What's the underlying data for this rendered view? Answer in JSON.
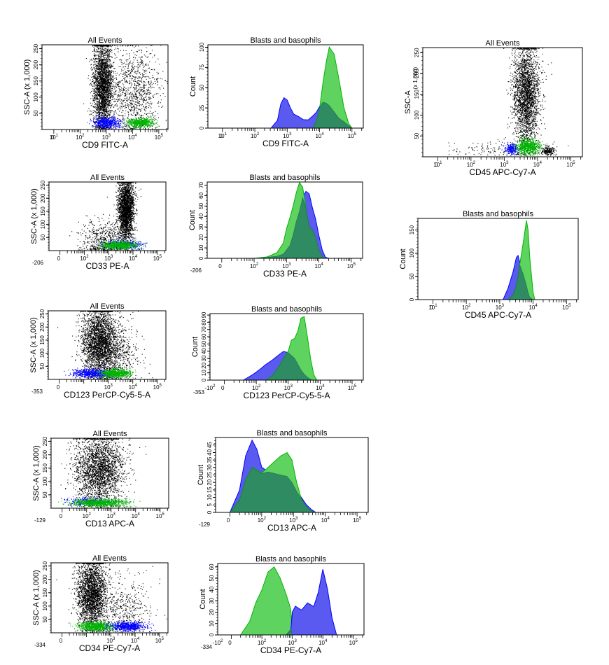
{
  "figure": {
    "colors": {
      "background": "#ffffff",
      "all_events": "#000000",
      "blasts": "#0000ff",
      "blasts_fill": "#5a5af0",
      "basophils": "#00b400",
      "basophils_fill": "#5fd35f",
      "overlap_fill": "#2e8b62"
    },
    "populations": [
      "Blasts (blue)",
      "Basophils (green)"
    ]
  },
  "chart_data": [
    {
      "id": "cd9-dot",
      "type": "scatter",
      "title": "All Events",
      "xlabel": "CD9 FITC-A",
      "ylabel": "SSC-A (x 1,000)",
      "x_scale": "biexponential",
      "x_ticks": [
        "0",
        "10^1",
        "10^2",
        "10^3",
        "10^4",
        "10^5"
      ],
      "y_ticks": [
        "50",
        "100",
        "150",
        "200",
        "250"
      ],
      "ylim": [
        0,
        262
      ],
      "clusters": [
        {
          "pop": "all",
          "x_log_center": 2.85,
          "x_log_sd": 0.18,
          "y_center": 140,
          "y_sd": 70,
          "n": 2600
        },
        {
          "pop": "all_sparse",
          "x_log_center": 4.0,
          "x_log_sd": 0.55,
          "y_center": 120,
          "y_sd": 65,
          "n": 1100
        },
        {
          "pop": "blasts",
          "x_log_center": 3.0,
          "x_log_sd": 0.25,
          "y_center": 22,
          "y_sd": 8,
          "n": 600
        },
        {
          "pop": "basophils",
          "x_log_center": 4.3,
          "x_log_sd": 0.25,
          "y_center": 22,
          "y_sd": 7,
          "n": 600
        }
      ]
    },
    {
      "id": "cd9-hist",
      "type": "area",
      "title": "Blasts and basophils",
      "xlabel": "CD9 FITC-A",
      "ylabel": "Count",
      "x_ticks": [
        "0",
        "10^1",
        "10^2",
        "10^3",
        "10^4",
        "10^5"
      ],
      "y_ticks": [
        "0",
        "25",
        "50",
        "75",
        "100"
      ],
      "ylim": [
        0,
        103
      ],
      "x_log": [
        2.5,
        2.7,
        2.8,
        2.9,
        3.0,
        3.1,
        3.2,
        3.35,
        3.5,
        3.65,
        3.8,
        3.9,
        4.0,
        4.1,
        4.2,
        4.3,
        4.45,
        4.6,
        4.75,
        4.9,
        5.0
      ],
      "series": [
        {
          "name": "Blasts",
          "values": [
            0,
            10,
            30,
            38,
            34,
            25,
            17,
            14,
            11,
            10,
            16,
            20,
            27,
            32,
            31,
            28,
            20,
            12,
            8,
            3,
            0
          ]
        },
        {
          "name": "Basophils",
          "values": [
            0,
            0,
            0,
            0,
            0,
            0,
            0,
            0,
            0,
            0,
            0,
            8,
            25,
            55,
            80,
            100,
            92,
            60,
            25,
            6,
            0
          ]
        }
      ]
    },
    {
      "id": "cd45-dot",
      "type": "scatter",
      "title": "All Events",
      "xlabel": "CD45 APC-Cy7-A",
      "ylabel": "SSC-A",
      "ylabel2": "(x 1,000)",
      "x_ticks": [
        "0",
        "10^1",
        "10^2",
        "10^3",
        "10^4",
        "10^5"
      ],
      "y_ticks": [
        "50",
        "100",
        "150",
        "200",
        "250"
      ],
      "ylim": [
        0,
        262
      ],
      "clusters": [
        {
          "pop": "all",
          "x_log_center": 3.65,
          "x_log_sd": 0.2,
          "y_center": 150,
          "y_sd": 60,
          "n": 3200
        },
        {
          "pop": "all_sparse",
          "x_log_center": 2.8,
          "x_log_sd": 0.7,
          "y_center": 20,
          "y_sd": 10,
          "n": 150
        },
        {
          "pop": "lymph",
          "x_log_center": 4.3,
          "x_log_sd": 0.1,
          "y_center": 15,
          "y_sd": 5,
          "n": 200
        },
        {
          "pop": "blasts",
          "x_log_center": 3.2,
          "x_log_sd": 0.1,
          "y_center": 20,
          "y_sd": 6,
          "n": 250
        },
        {
          "pop": "basophils",
          "x_log_center": 3.7,
          "x_log_sd": 0.18,
          "y_center": 25,
          "y_sd": 9,
          "n": 700
        }
      ]
    },
    {
      "id": "cd45-hist",
      "type": "area",
      "title": "Blasts and basophils",
      "xlabel": "CD45 APC-Cy7-A",
      "ylabel": "Count",
      "x_ticks": [
        "0",
        "10^1",
        "10^2",
        "10^3",
        "10^4",
        "10^5"
      ],
      "y_ticks": [
        "0",
        "50",
        "100",
        "150"
      ],
      "ylim": [
        0,
        175
      ],
      "x_log": [
        3.1,
        3.25,
        3.4,
        3.5,
        3.55,
        3.6,
        3.7,
        3.8,
        3.85,
        3.9,
        4.0,
        4.05
      ],
      "series": [
        {
          "name": "Blasts",
          "values": [
            0,
            25,
            60,
            90,
            95,
            80,
            55,
            30,
            15,
            5,
            0,
            0
          ]
        },
        {
          "name": "Basophils",
          "values": [
            0,
            0,
            10,
            30,
            50,
            75,
            120,
            170,
            150,
            90,
            15,
            0
          ]
        }
      ]
    },
    {
      "id": "cd33-dot",
      "type": "scatter",
      "title": "All Events",
      "xlabel": "CD33 PE-A",
      "ylabel": "SSC-A (x 1,000)",
      "x_ticks": [
        "-206",
        "0",
        "10^2",
        "10^3",
        "10^4",
        "10^5"
      ],
      "y_ticks": [
        "50",
        "100",
        "150",
        "200",
        "250"
      ],
      "ylim": [
        0,
        262
      ],
      "clusters": [
        {
          "pop": "all",
          "x_log_center": 3.7,
          "x_log_sd": 0.16,
          "y_center": 160,
          "y_sd": 60,
          "n": 2800
        },
        {
          "pop": "all_sparse",
          "x_log_center": 2.8,
          "x_log_sd": 0.5,
          "y_center": 40,
          "y_sd": 40,
          "n": 600
        },
        {
          "pop": "blasts",
          "x_log_center": 3.6,
          "x_log_sd": 0.4,
          "y_center": 25,
          "y_sd": 8,
          "n": 400
        },
        {
          "pop": "basophils",
          "x_log_center": 3.4,
          "x_log_sd": 0.35,
          "y_center": 22,
          "y_sd": 7,
          "n": 700
        }
      ]
    },
    {
      "id": "cd33-hist",
      "type": "area",
      "title": "Blasts and basophils",
      "xlabel": "CD33 PE-A",
      "ylabel": "Count",
      "x_ticks": [
        "-206",
        "0",
        "10^2",
        "10^3",
        "10^4",
        "10^5"
      ],
      "y_ticks": [
        "0",
        "10",
        "20",
        "30",
        "40",
        "50",
        "60",
        "70"
      ],
      "ylim": [
        0,
        73
      ],
      "x_log": [
        2.0,
        2.4,
        2.7,
        2.9,
        3.0,
        3.1,
        3.2,
        3.3,
        3.4,
        3.5,
        3.6,
        3.7,
        3.8,
        3.9,
        4.0,
        4.1,
        4.2,
        4.3
      ],
      "series": [
        {
          "name": "Blasts",
          "values": [
            0,
            1,
            2,
            4,
            8,
            12,
            22,
            35,
            45,
            58,
            64,
            62,
            48,
            38,
            22,
            8,
            1,
            0
          ]
        },
        {
          "name": "Basophils",
          "values": [
            0,
            1,
            5,
            15,
            28,
            38,
            50,
            63,
            72,
            68,
            48,
            30,
            27,
            20,
            8,
            2,
            0,
            0
          ]
        }
      ]
    },
    {
      "id": "cd123-dot",
      "type": "scatter",
      "title": "All Events",
      "xlabel": "CD123 PerCP-Cy5-5-A",
      "ylabel": "SSC-A (x 1,000)",
      "x_ticks": [
        "-353",
        "0",
        "10^3",
        "10^4",
        "10^5"
      ],
      "y_ticks": [
        "50",
        "100",
        "150",
        "200",
        "250"
      ],
      "ylim": [
        0,
        262
      ],
      "clusters": [
        {
          "pop": "all",
          "x_log_center": 2.6,
          "x_log_sd": 0.35,
          "y_center": 150,
          "y_sd": 65,
          "n": 3400
        },
        {
          "pop": "all_sparse",
          "x_log_center": 3.2,
          "x_log_sd": 0.5,
          "y_center": 100,
          "y_sd": 60,
          "n": 800
        },
        {
          "pop": "blasts",
          "x_log_center": 2.3,
          "x_log_sd": 0.4,
          "y_center": 25,
          "y_sd": 8,
          "n": 600
        },
        {
          "pop": "basophils",
          "x_log_center": 3.3,
          "x_log_sd": 0.3,
          "y_center": 25,
          "y_sd": 8,
          "n": 700
        }
      ]
    },
    {
      "id": "cd123-hist",
      "type": "area",
      "title": "Blasts and basophils",
      "xlabel": "CD123 PerCP-Cy5-5-A",
      "ylabel": "Count",
      "x_ticks": [
        "-353",
        "-10^2",
        "0",
        "10^2",
        "10^3",
        "10^4",
        "10^5"
      ],
      "y_ticks": [
        "0",
        "10",
        "20",
        "30",
        "40",
        "50",
        "60",
        "70",
        "80",
        "90"
      ],
      "ylim": [
        0,
        92
      ],
      "x_log": [
        1.6,
        1.9,
        2.1,
        2.3,
        2.5,
        2.7,
        2.85,
        3.0,
        3.1,
        3.2,
        3.3,
        3.4,
        3.5,
        3.6,
        3.7,
        3.8,
        3.9
      ],
      "series": [
        {
          "name": "Blasts",
          "values": [
            0,
            8,
            15,
            22,
            28,
            35,
            40,
            38,
            34,
            30,
            22,
            14,
            8,
            4,
            1,
            0,
            0
          ]
        },
        {
          "name": "Basophils",
          "values": [
            0,
            0,
            0,
            0,
            6,
            18,
            30,
            40,
            55,
            58,
            68,
            85,
            88,
            60,
            30,
            8,
            0
          ]
        }
      ]
    },
    {
      "id": "cd13-dot",
      "type": "scatter",
      "title": "All Events",
      "xlabel": "CD13 APC-A",
      "ylabel": "SSC-A (x 1,000)",
      "x_ticks": [
        "-129",
        "0",
        "10^2",
        "10^3",
        "10^4",
        "10^5"
      ],
      "y_ticks": [
        "50",
        "100",
        "150",
        "200",
        "250"
      ],
      "ylim": [
        0,
        262
      ],
      "clusters": [
        {
          "pop": "all",
          "x_log_center": 2.5,
          "x_log_sd": 0.5,
          "y_center": 150,
          "y_sd": 65,
          "n": 3600
        },
        {
          "pop": "blasts",
          "x_log_center": 2.1,
          "x_log_sd": 0.45,
          "y_center": 25,
          "y_sd": 8,
          "n": 300
        },
        {
          "pop": "basophils",
          "x_log_center": 2.5,
          "x_log_sd": 0.55,
          "y_center": 22,
          "y_sd": 7,
          "n": 900
        }
      ]
    },
    {
      "id": "cd13-hist",
      "type": "area",
      "title": "Blasts and basophils",
      "xlabel": "CD13 APC-A",
      "ylabel": "Count",
      "x_ticks": [
        "-129",
        "0",
        "10^2",
        "10^3",
        "10^4",
        "10^5"
      ],
      "y_ticks": [
        "0",
        "5",
        "10",
        "15",
        "20",
        "25",
        "30",
        "35",
        "40",
        "45"
      ],
      "ylim": [
        0,
        50
      ],
      "x_log": [
        1.0,
        1.3,
        1.5,
        1.7,
        1.85,
        2.0,
        2.2,
        2.4,
        2.6,
        2.8,
        2.95,
        3.1,
        3.25,
        3.4,
        3.55,
        3.7
      ],
      "series": [
        {
          "name": "Blasts",
          "values": [
            0,
            15,
            38,
            48,
            42,
            30,
            27,
            26,
            25,
            24,
            20,
            14,
            10,
            5,
            2,
            0
          ]
        },
        {
          "name": "Basophils",
          "values": [
            0,
            8,
            22,
            30,
            28,
            26,
            30,
            34,
            38,
            40,
            35,
            20,
            9,
            4,
            1,
            0
          ]
        }
      ]
    },
    {
      "id": "cd34-dot",
      "type": "scatter",
      "title": "All Events",
      "xlabel": "CD34 PE-Cy7-A",
      "ylabel": "SSC-A (x 1,000)",
      "x_ticks": [
        "-334",
        "0",
        "10^3",
        "10^4",
        "10^5"
      ],
      "y_ticks": [
        "50",
        "100",
        "150",
        "200",
        "250"
      ],
      "ylim": [
        0,
        262
      ],
      "clusters": [
        {
          "pop": "all",
          "x_log_center": 2.2,
          "x_log_sd": 0.3,
          "y_center": 150,
          "y_sd": 65,
          "n": 3200
        },
        {
          "pop": "all_sparse",
          "x_log_center": 3.5,
          "x_log_sd": 0.6,
          "y_center": 90,
          "y_sd": 55,
          "n": 500
        },
        {
          "pop": "basophils",
          "x_log_center": 2.4,
          "x_log_sd": 0.35,
          "y_center": 25,
          "y_sd": 8,
          "n": 800
        },
        {
          "pop": "blasts",
          "x_log_center": 3.7,
          "x_log_sd": 0.35,
          "y_center": 25,
          "y_sd": 8,
          "n": 700
        }
      ]
    },
    {
      "id": "cd34-hist",
      "type": "area",
      "title": "Blasts and basophils",
      "xlabel": "CD34 PE-Cy7-A",
      "ylabel": "Count",
      "x_ticks": [
        "-334",
        "-10^2",
        "0",
        "10^2",
        "10^3",
        "10^4",
        "10^5"
      ],
      "y_ticks": [
        "0",
        "10",
        "20",
        "30",
        "40",
        "50",
        "60"
      ],
      "ylim": [
        0,
        63
      ],
      "x_log": [
        1.3,
        1.6,
        1.8,
        2.0,
        2.2,
        2.4,
        2.6,
        2.8,
        2.95,
        3.0,
        3.1,
        3.3,
        3.5,
        3.7,
        3.85,
        4.0,
        4.15,
        4.3,
        4.45
      ],
      "series": [
        {
          "name": "Basophils",
          "values": [
            0,
            12,
            28,
            40,
            55,
            60,
            50,
            35,
            22,
            0,
            0,
            0,
            0,
            0,
            0,
            0,
            0,
            0,
            0
          ]
        },
        {
          "name": "Blasts",
          "values": [
            0,
            0,
            0,
            0,
            0,
            0,
            0,
            0,
            5,
            20,
            25,
            22,
            28,
            25,
            38,
            58,
            40,
            15,
            0
          ]
        }
      ]
    }
  ]
}
